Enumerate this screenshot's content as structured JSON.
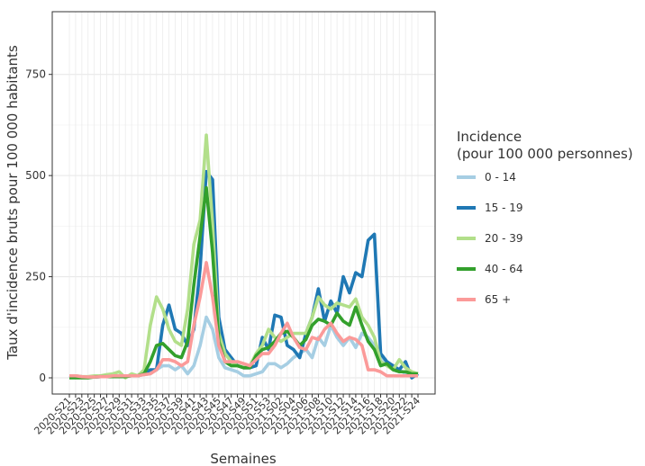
{
  "chart_data": {
    "type": "line",
    "x_label": "Semaines",
    "y_label": "Taux d'incidence bruts pour 100 000 habitants",
    "legend_title": [
      "Incidence",
      "(pour 100 000 personnes)"
    ],
    "legend_position": "right",
    "grid": true,
    "ylim": [
      -40,
      905
    ],
    "yticks": [
      0,
      250,
      500,
      750
    ],
    "categories": [
      "2020-S21",
      null,
      "2020-S23",
      null,
      "2020-S25",
      null,
      "2020-S27",
      null,
      "2020-S29",
      null,
      "2020-S31",
      null,
      "2020-S33",
      null,
      "2020-S35",
      null,
      "2020-S37",
      null,
      "2020-S39",
      null,
      "2020-S41",
      null,
      "2020-S43",
      null,
      "2020-S45",
      null,
      "2020-S47",
      null,
      "2020-S49",
      null,
      "2020-S51",
      null,
      "2020-S53",
      null,
      "2021-S02",
      null,
      "2021-S04",
      null,
      "2021-S06",
      null,
      "2021-S08",
      null,
      "2021-S10",
      null,
      "2021-S12",
      null,
      "2021-S14",
      null,
      "2021-S16",
      null,
      "2021-S18",
      null,
      "2021-S20",
      null,
      "2021-S22",
      null,
      "2021-S24"
    ],
    "series": [
      {
        "name": "0 - 14",
        "color": "#a6cee3",
        "values": [
          5,
          5,
          3,
          2,
          2,
          3,
          3,
          5,
          5,
          5,
          5,
          5,
          8,
          10,
          20,
          30,
          30,
          20,
          30,
          10,
          30,
          80,
          150,
          120,
          50,
          25,
          20,
          15,
          5,
          5,
          10,
          15,
          35,
          35,
          25,
          35,
          50,
          60,
          70,
          50,
          100,
          80,
          130,
          100,
          80,
          100,
          75,
          110,
          100,
          80,
          60,
          30,
          25,
          20,
          10,
          10,
          5
        ]
      },
      {
        "name": "15 - 19",
        "color": "#1f78b4",
        "values": [
          5,
          3,
          2,
          2,
          2,
          3,
          3,
          5,
          5,
          5,
          5,
          5,
          10,
          20,
          20,
          130,
          180,
          120,
          110,
          80,
          120,
          270,
          510,
          490,
          150,
          70,
          50,
          30,
          25,
          25,
          30,
          100,
          70,
          155,
          150,
          80,
          70,
          50,
          110,
          150,
          220,
          140,
          190,
          160,
          250,
          210,
          260,
          250,
          340,
          355,
          60,
          40,
          30,
          20,
          40,
          0,
          10
        ]
      },
      {
        "name": "20 - 39",
        "color": "#b2df8a",
        "values": [
          5,
          5,
          3,
          3,
          5,
          5,
          8,
          10,
          15,
          0,
          10,
          5,
          20,
          130,
          200,
          170,
          120,
          90,
          80,
          170,
          330,
          390,
          600,
          380,
          110,
          60,
          40,
          30,
          25,
          30,
          60,
          80,
          120,
          100,
          90,
          100,
          110,
          110,
          110,
          150,
          200,
          180,
          170,
          185,
          180,
          175,
          195,
          150,
          130,
          100,
          40,
          30,
          20,
          45,
          25,
          15,
          10
        ]
      },
      {
        "name": "40 - 64",
        "color": "#33a02c",
        "values": [
          0,
          0,
          0,
          0,
          2,
          3,
          3,
          3,
          3,
          3,
          5,
          5,
          10,
          40,
          80,
          85,
          70,
          55,
          50,
          90,
          230,
          350,
          470,
          310,
          90,
          40,
          30,
          30,
          25,
          25,
          55,
          70,
          75,
          90,
          110,
          115,
          100,
          80,
          95,
          130,
          145,
          140,
          130,
          160,
          140,
          130,
          175,
          130,
          90,
          70,
          30,
          35,
          20,
          15,
          15,
          10,
          10
        ]
      },
      {
        "name": "65 +",
        "color": "#fb9a99",
        "values": [
          5,
          5,
          3,
          2,
          2,
          3,
          3,
          5,
          5,
          5,
          5,
          5,
          8,
          10,
          20,
          45,
          45,
          40,
          30,
          40,
          130,
          200,
          285,
          200,
          80,
          40,
          40,
          40,
          35,
          30,
          45,
          60,
          60,
          80,
          110,
          135,
          100,
          75,
          70,
          100,
          95,
          120,
          135,
          110,
          90,
          100,
          95,
          80,
          20,
          20,
          15,
          5,
          5,
          5,
          5,
          5,
          5
        ]
      }
    ]
  }
}
